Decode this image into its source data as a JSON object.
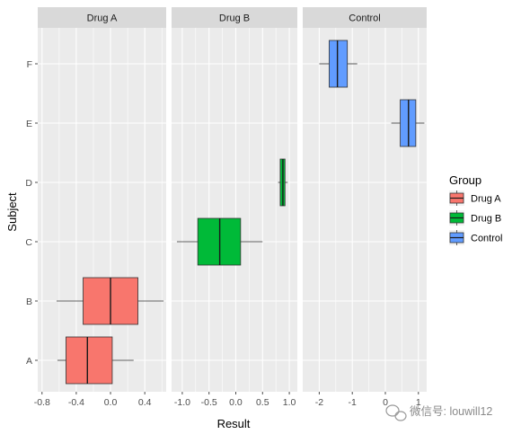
{
  "chart_data": {
    "type": "boxplot",
    "orientation": "horizontal",
    "xlabel": "Result",
    "ylabel": "Subject",
    "categories": [
      "A",
      "B",
      "C",
      "D",
      "E",
      "F"
    ],
    "panels": [
      {
        "name": "Drug A",
        "xlim": [
          -0.85,
          0.65
        ],
        "ticks": [
          -0.8,
          -0.4,
          0.0,
          0.4
        ],
        "tick_labels": [
          "-0.8",
          "-0.4",
          "0.0",
          "0.4"
        ],
        "boxes": [
          {
            "category": "A",
            "min": -0.62,
            "q1": -0.52,
            "median": -0.27,
            "q3": 0.02,
            "max": 0.27
          },
          {
            "category": "B",
            "min": -0.63,
            "q1": -0.32,
            "median": 0.0,
            "q3": 0.32,
            "max": 0.62
          }
        ]
      },
      {
        "name": "Drug B",
        "xlim": [
          -1.2,
          1.15
        ],
        "ticks": [
          -1.0,
          -0.5,
          0.0,
          0.5,
          1.0
        ],
        "tick_labels": [
          "-1.0",
          "-0.5",
          "0.0",
          "0.5",
          "1.0"
        ],
        "boxes": [
          {
            "category": "C",
            "min": -1.1,
            "q1": -0.71,
            "median": -0.3,
            "q3": 0.09,
            "max": 0.5
          },
          {
            "category": "D",
            "min": 0.79,
            "q1": 0.83,
            "median": 0.88,
            "q3": 0.92,
            "max": 0.97
          }
        ]
      },
      {
        "name": "Control",
        "xlim": [
          -2.5,
          1.25
        ],
        "ticks": [
          -2,
          -1,
          0,
          1
        ],
        "tick_labels": [
          "-2",
          "-1",
          "0",
          "1"
        ],
        "boxes": [
          {
            "category": "E",
            "min": 0.18,
            "q1": 0.45,
            "median": 0.7,
            "q3": 0.92,
            "max": 1.18
          },
          {
            "category": "F",
            "min": -2.0,
            "q1": -1.7,
            "median": -1.45,
            "q3": -1.15,
            "max": -0.85
          }
        ]
      }
    ],
    "legend": {
      "title": "Group",
      "placement": "right",
      "items": [
        {
          "label": "Drug A",
          "color": "#F8766D"
        },
        {
          "label": "Drug B",
          "color": "#00BA38"
        },
        {
          "label": "Control",
          "color": "#619CFF"
        }
      ]
    },
    "grid": true,
    "panel_background": "#EBEBEB",
    "strip_background": "#D9D9D9"
  },
  "watermark": {
    "icon": "wechat-icon",
    "text": "微信号: louwill12"
  }
}
